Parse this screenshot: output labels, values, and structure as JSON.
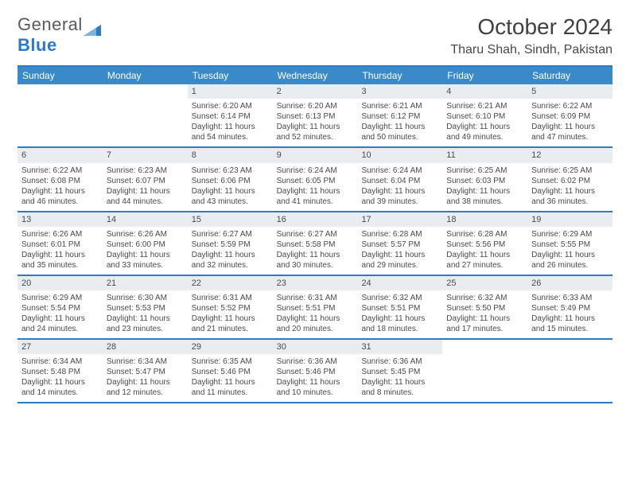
{
  "brand": {
    "name_a": "General",
    "name_b": "Blue"
  },
  "title": "October 2024",
  "location": "Tharu Shah, Sindh, Pakistan",
  "colors": {
    "header_bg": "#3a8ac9",
    "border": "#2f7bbf",
    "daynum_bg": "#e9edf0",
    "text": "#4a4a4a"
  },
  "dow": [
    "Sunday",
    "Monday",
    "Tuesday",
    "Wednesday",
    "Thursday",
    "Friday",
    "Saturday"
  ],
  "weeks": [
    [
      {
        "n": "",
        "sr": "",
        "ss": "",
        "dl": ""
      },
      {
        "n": "",
        "sr": "",
        "ss": "",
        "dl": ""
      },
      {
        "n": "1",
        "sr": "Sunrise: 6:20 AM",
        "ss": "Sunset: 6:14 PM",
        "dl": "Daylight: 11 hours and 54 minutes."
      },
      {
        "n": "2",
        "sr": "Sunrise: 6:20 AM",
        "ss": "Sunset: 6:13 PM",
        "dl": "Daylight: 11 hours and 52 minutes."
      },
      {
        "n": "3",
        "sr": "Sunrise: 6:21 AM",
        "ss": "Sunset: 6:12 PM",
        "dl": "Daylight: 11 hours and 50 minutes."
      },
      {
        "n": "4",
        "sr": "Sunrise: 6:21 AM",
        "ss": "Sunset: 6:10 PM",
        "dl": "Daylight: 11 hours and 49 minutes."
      },
      {
        "n": "5",
        "sr": "Sunrise: 6:22 AM",
        "ss": "Sunset: 6:09 PM",
        "dl": "Daylight: 11 hours and 47 minutes."
      }
    ],
    [
      {
        "n": "6",
        "sr": "Sunrise: 6:22 AM",
        "ss": "Sunset: 6:08 PM",
        "dl": "Daylight: 11 hours and 46 minutes."
      },
      {
        "n": "7",
        "sr": "Sunrise: 6:23 AM",
        "ss": "Sunset: 6:07 PM",
        "dl": "Daylight: 11 hours and 44 minutes."
      },
      {
        "n": "8",
        "sr": "Sunrise: 6:23 AM",
        "ss": "Sunset: 6:06 PM",
        "dl": "Daylight: 11 hours and 43 minutes."
      },
      {
        "n": "9",
        "sr": "Sunrise: 6:24 AM",
        "ss": "Sunset: 6:05 PM",
        "dl": "Daylight: 11 hours and 41 minutes."
      },
      {
        "n": "10",
        "sr": "Sunrise: 6:24 AM",
        "ss": "Sunset: 6:04 PM",
        "dl": "Daylight: 11 hours and 39 minutes."
      },
      {
        "n": "11",
        "sr": "Sunrise: 6:25 AM",
        "ss": "Sunset: 6:03 PM",
        "dl": "Daylight: 11 hours and 38 minutes."
      },
      {
        "n": "12",
        "sr": "Sunrise: 6:25 AM",
        "ss": "Sunset: 6:02 PM",
        "dl": "Daylight: 11 hours and 36 minutes."
      }
    ],
    [
      {
        "n": "13",
        "sr": "Sunrise: 6:26 AM",
        "ss": "Sunset: 6:01 PM",
        "dl": "Daylight: 11 hours and 35 minutes."
      },
      {
        "n": "14",
        "sr": "Sunrise: 6:26 AM",
        "ss": "Sunset: 6:00 PM",
        "dl": "Daylight: 11 hours and 33 minutes."
      },
      {
        "n": "15",
        "sr": "Sunrise: 6:27 AM",
        "ss": "Sunset: 5:59 PM",
        "dl": "Daylight: 11 hours and 32 minutes."
      },
      {
        "n": "16",
        "sr": "Sunrise: 6:27 AM",
        "ss": "Sunset: 5:58 PM",
        "dl": "Daylight: 11 hours and 30 minutes."
      },
      {
        "n": "17",
        "sr": "Sunrise: 6:28 AM",
        "ss": "Sunset: 5:57 PM",
        "dl": "Daylight: 11 hours and 29 minutes."
      },
      {
        "n": "18",
        "sr": "Sunrise: 6:28 AM",
        "ss": "Sunset: 5:56 PM",
        "dl": "Daylight: 11 hours and 27 minutes."
      },
      {
        "n": "19",
        "sr": "Sunrise: 6:29 AM",
        "ss": "Sunset: 5:55 PM",
        "dl": "Daylight: 11 hours and 26 minutes."
      }
    ],
    [
      {
        "n": "20",
        "sr": "Sunrise: 6:29 AM",
        "ss": "Sunset: 5:54 PM",
        "dl": "Daylight: 11 hours and 24 minutes."
      },
      {
        "n": "21",
        "sr": "Sunrise: 6:30 AM",
        "ss": "Sunset: 5:53 PM",
        "dl": "Daylight: 11 hours and 23 minutes."
      },
      {
        "n": "22",
        "sr": "Sunrise: 6:31 AM",
        "ss": "Sunset: 5:52 PM",
        "dl": "Daylight: 11 hours and 21 minutes."
      },
      {
        "n": "23",
        "sr": "Sunrise: 6:31 AM",
        "ss": "Sunset: 5:51 PM",
        "dl": "Daylight: 11 hours and 20 minutes."
      },
      {
        "n": "24",
        "sr": "Sunrise: 6:32 AM",
        "ss": "Sunset: 5:51 PM",
        "dl": "Daylight: 11 hours and 18 minutes."
      },
      {
        "n": "25",
        "sr": "Sunrise: 6:32 AM",
        "ss": "Sunset: 5:50 PM",
        "dl": "Daylight: 11 hours and 17 minutes."
      },
      {
        "n": "26",
        "sr": "Sunrise: 6:33 AM",
        "ss": "Sunset: 5:49 PM",
        "dl": "Daylight: 11 hours and 15 minutes."
      }
    ],
    [
      {
        "n": "27",
        "sr": "Sunrise: 6:34 AM",
        "ss": "Sunset: 5:48 PM",
        "dl": "Daylight: 11 hours and 14 minutes."
      },
      {
        "n": "28",
        "sr": "Sunrise: 6:34 AM",
        "ss": "Sunset: 5:47 PM",
        "dl": "Daylight: 11 hours and 12 minutes."
      },
      {
        "n": "29",
        "sr": "Sunrise: 6:35 AM",
        "ss": "Sunset: 5:46 PM",
        "dl": "Daylight: 11 hours and 11 minutes."
      },
      {
        "n": "30",
        "sr": "Sunrise: 6:36 AM",
        "ss": "Sunset: 5:46 PM",
        "dl": "Daylight: 11 hours and 10 minutes."
      },
      {
        "n": "31",
        "sr": "Sunrise: 6:36 AM",
        "ss": "Sunset: 5:45 PM",
        "dl": "Daylight: 11 hours and 8 minutes."
      },
      {
        "n": "",
        "sr": "",
        "ss": "",
        "dl": ""
      },
      {
        "n": "",
        "sr": "",
        "ss": "",
        "dl": ""
      }
    ]
  ]
}
